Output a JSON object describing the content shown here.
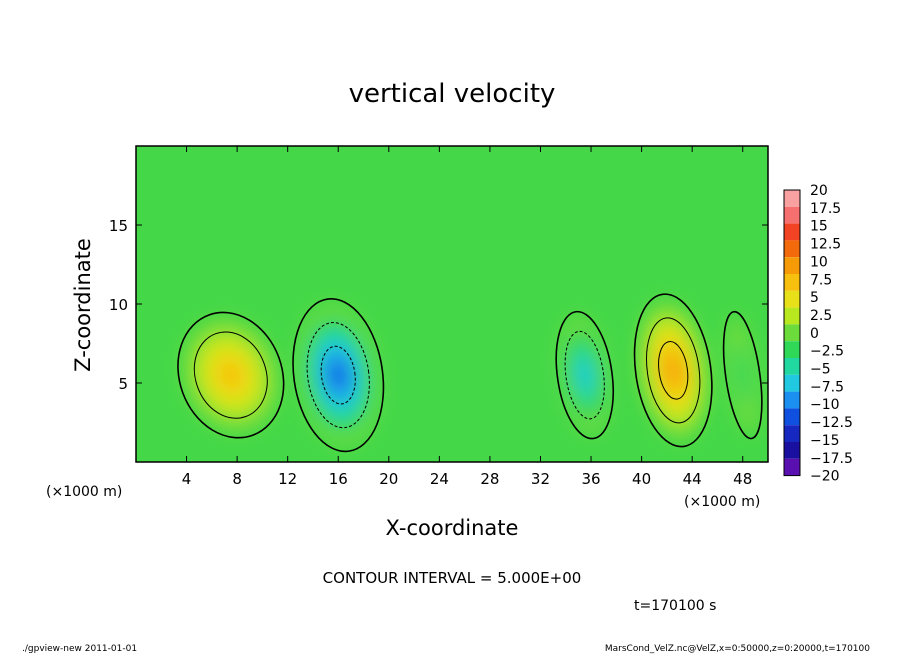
{
  "chart_data": {
    "type": "heatmap",
    "title": "vertical velocity",
    "xlabel": "X-coordinate",
    "ylabel": "Z-coordinate",
    "x_unit_left": "(×1000 m)",
    "x_unit_right": "(×1000 m)",
    "xlim": [
      0,
      50
    ],
    "ylim": [
      0,
      20
    ],
    "x_ticks": [
      4,
      8,
      12,
      16,
      20,
      24,
      28,
      32,
      36,
      40,
      44,
      48
    ],
    "y_ticks": [
      5,
      10,
      15
    ],
    "colorbar_labels": [
      "20",
      "17.5",
      "15",
      "12.5",
      "10",
      "7.5",
      "5",
      "2.5",
      "0",
      "−2.5",
      "−5",
      "−7.5",
      "−10",
      "−12.5",
      "−15",
      "−17.5",
      "−20"
    ],
    "colorbar_colors": [
      "#f9a0a0",
      "#f77070",
      "#f24424",
      "#f36a0c",
      "#f79a08",
      "#f8c00e",
      "#e8e018",
      "#b8e81e",
      "#6cdc3c",
      "#30d858",
      "#20d8a0",
      "#20c8e0",
      "#1c90f0",
      "#1050e0",
      "#1628c0",
      "#1a10a0",
      "#5a10b0"
    ],
    "features": [
      {
        "x": 7.5,
        "z": 5.5,
        "w": 3.0,
        "value": 8.5
      },
      {
        "x": 16.0,
        "z": 5.5,
        "w": 2.6,
        "value": -13.0
      },
      {
        "x": 35.5,
        "z": 5.5,
        "w": 1.6,
        "value": -9.0
      },
      {
        "x": 42.5,
        "z": 5.8,
        "w": 2.2,
        "value": 11.0
      },
      {
        "x": 48.0,
        "z": 5.5,
        "w": 1.0,
        "value": -4.0
      }
    ],
    "contour_interval_text": "CONTOUR INTERVAL = 5.000E+00",
    "time_text": "t=170100 s"
  },
  "footer": {
    "left": "./gpview-new  2011-01-01",
    "right": "MarsCond_VelZ.nc@VelZ,x=0:50000,z=0:20000,t=170100"
  }
}
